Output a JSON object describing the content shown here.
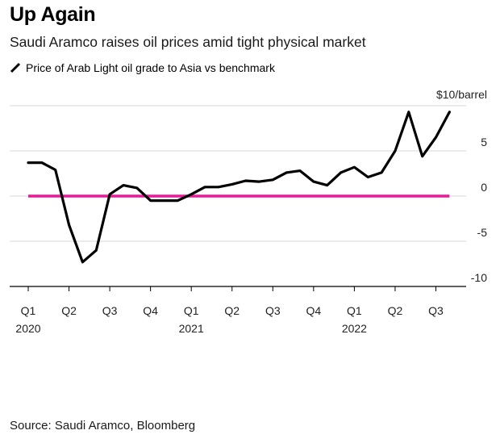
{
  "header": {
    "title": "Up Again",
    "subtitle": "Saudi Aramco raises oil prices amid tight physical market"
  },
  "source": "Source: Saudi Aramco, Bloomberg",
  "colors": {
    "series": "#000000",
    "zero_line": "#f0169b",
    "grid": "#d9d9d9"
  },
  "chart_data": {
    "type": "line",
    "legend_position": "top-left",
    "grid": true,
    "y_unit_label": "$10/barrel",
    "ylim": [
      -11,
      12
    ],
    "y_ticks": [
      {
        "value": 10,
        "label": "$10/barrel"
      },
      {
        "value": 5,
        "label": "5"
      },
      {
        "value": 0,
        "label": "0"
      },
      {
        "value": -5,
        "label": "-5"
      },
      {
        "value": -10,
        "label": "-10"
      }
    ],
    "x_ticks": [
      {
        "index": 0,
        "label": "Q1",
        "year": "2020"
      },
      {
        "index": 3,
        "label": "Q2",
        "year": ""
      },
      {
        "index": 6,
        "label": "Q3",
        "year": ""
      },
      {
        "index": 9,
        "label": "Q4",
        "year": ""
      },
      {
        "index": 12,
        "label": "Q1",
        "year": "2021"
      },
      {
        "index": 15,
        "label": "Q2",
        "year": ""
      },
      {
        "index": 18,
        "label": "Q3",
        "year": ""
      },
      {
        "index": 21,
        "label": "Q4",
        "year": ""
      },
      {
        "index": 24,
        "label": "Q1",
        "year": "2022"
      },
      {
        "index": 27,
        "label": "Q2",
        "year": ""
      },
      {
        "index": 30,
        "label": "Q3",
        "year": ""
      }
    ],
    "x_range": [
      0,
      32.5
    ],
    "series": [
      {
        "name": "Price of Arab Light oil grade to Asia vs benchmark",
        "values": [
          3.7,
          3.7,
          2.9,
          -3.2,
          -7.3,
          -6.0,
          0.2,
          1.2,
          0.9,
          -0.5,
          -0.5,
          -0.5,
          0.2,
          1.0,
          1.0,
          1.3,
          1.7,
          1.6,
          1.8,
          2.6,
          2.8,
          1.6,
          1.2,
          2.6,
          3.2,
          2.1,
          2.6,
          5.0,
          9.3,
          4.4,
          6.5,
          9.3
        ]
      }
    ]
  }
}
